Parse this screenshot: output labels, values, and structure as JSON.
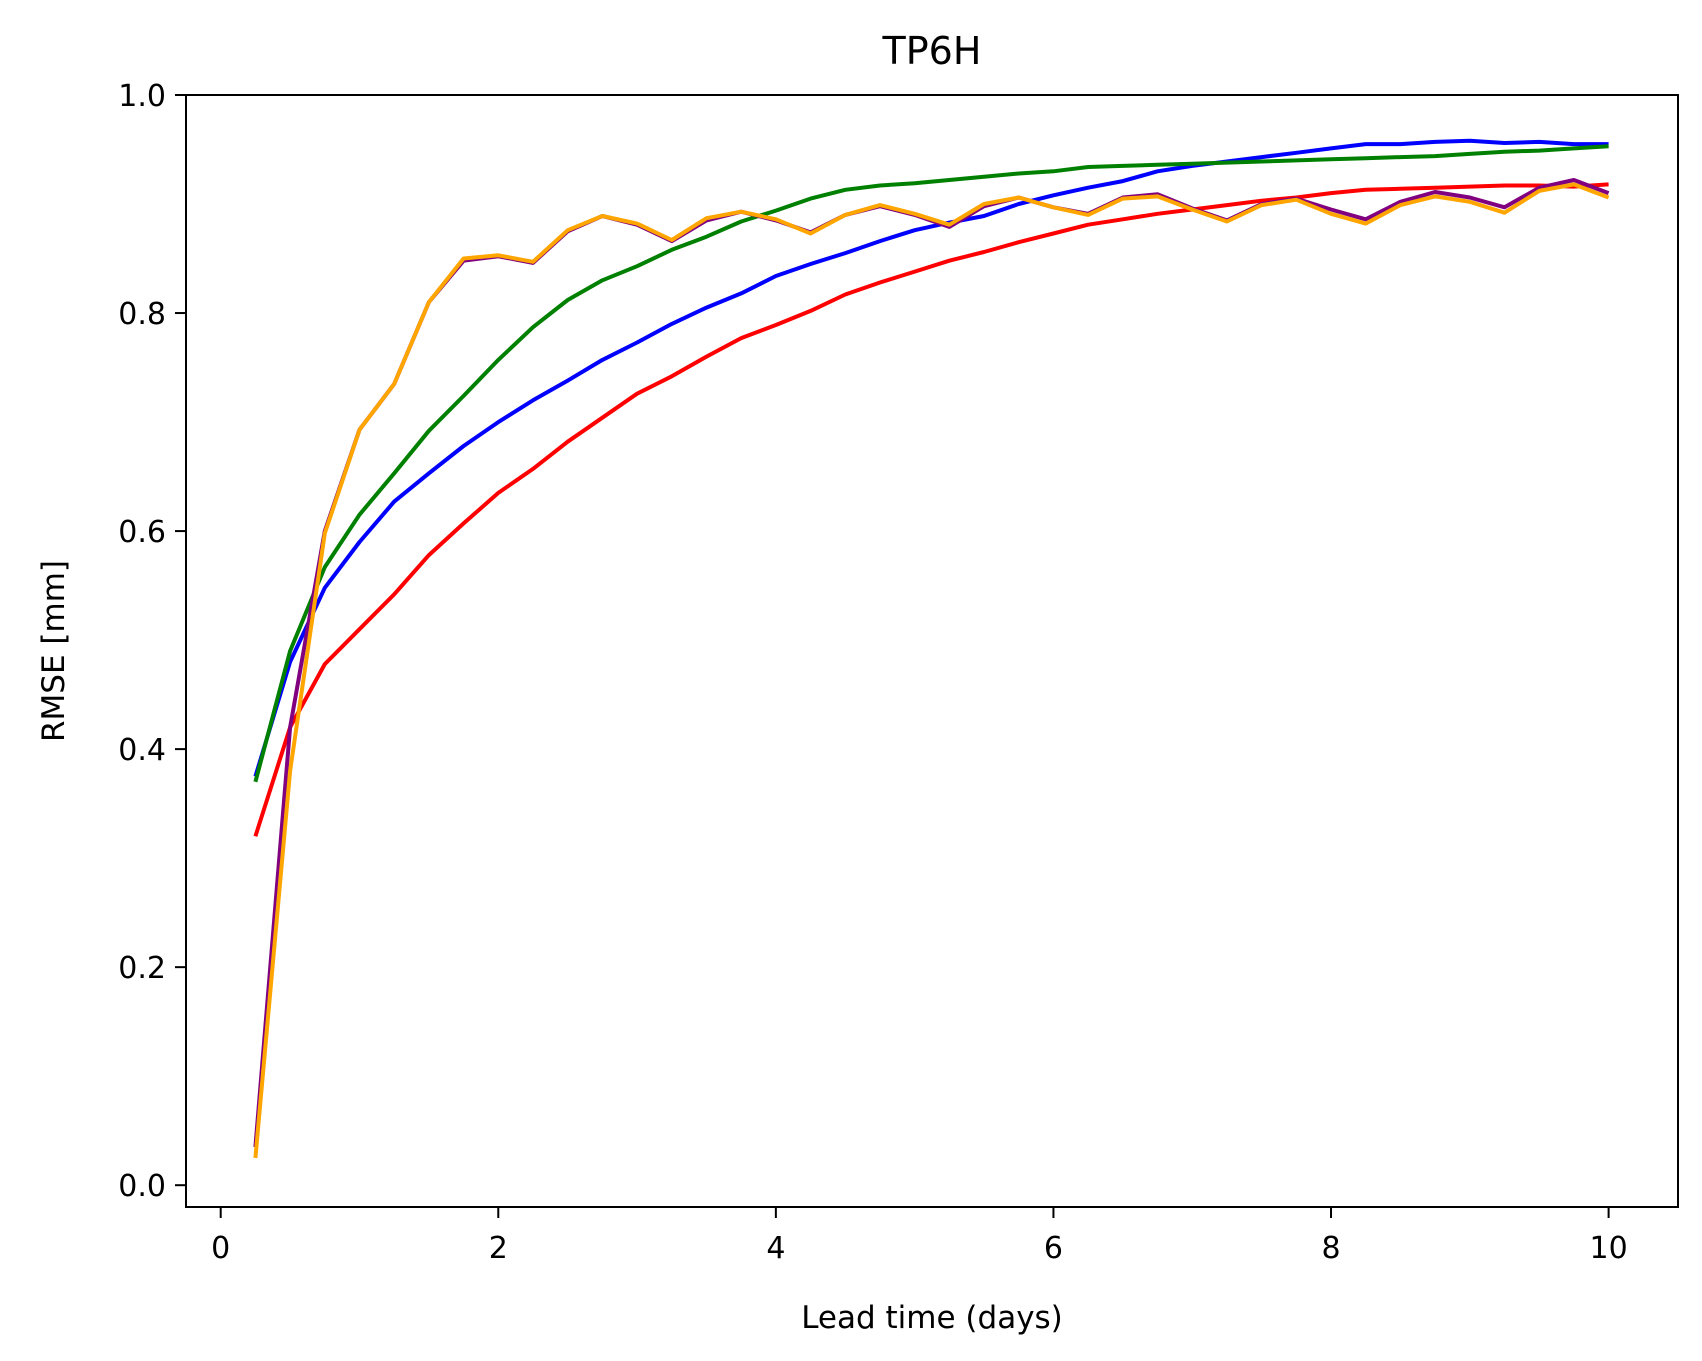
{
  "chart_data": {
    "type": "line",
    "title": "TP6H",
    "xlabel": "Lead time (days)",
    "ylabel": "RMSE [mm]",
    "xlim": [
      -0.25,
      10.5
    ],
    "ylim": [
      -0.02,
      1.0
    ],
    "xticks": [
      0,
      2,
      4,
      6,
      8,
      10
    ],
    "xtick_labels": [
      "0",
      "2",
      "4",
      "6",
      "8",
      "10"
    ],
    "yticks": [
      0.0,
      0.2,
      0.4,
      0.6,
      0.8,
      1.0
    ],
    "ytick_labels": [
      "0.0",
      "0.2",
      "0.4",
      "0.6",
      "0.8",
      "1.0"
    ],
    "grid": false,
    "x": [
      0.25,
      0.5,
      0.75,
      1.0,
      1.25,
      1.5,
      1.75,
      2.0,
      2.25,
      2.5,
      2.75,
      3.0,
      3.25,
      3.5,
      3.75,
      4.0,
      4.25,
      4.5,
      4.75,
      5.0,
      5.25,
      5.5,
      5.75,
      6.0,
      6.25,
      6.5,
      6.75,
      7.0,
      7.25,
      7.5,
      7.75,
      8.0,
      8.25,
      8.5,
      8.75,
      9.0,
      9.25,
      9.5,
      9.75,
      10.0
    ],
    "series": [
      {
        "color": "#0000ff",
        "values": [
          0.375,
          0.48,
          0.548,
          0.59,
          0.627,
          0.653,
          0.678,
          0.7,
          0.72,
          0.738,
          0.757,
          0.773,
          0.79,
          0.805,
          0.818,
          0.834,
          0.845,
          0.855,
          0.866,
          0.876,
          0.883,
          0.889,
          0.9,
          0.908,
          0.915,
          0.921,
          0.93,
          0.935,
          0.939,
          0.943,
          0.947,
          0.951,
          0.955,
          0.955,
          0.957,
          0.958,
          0.956,
          0.957,
          0.955,
          0.955
        ]
      },
      {
        "color": "#008000",
        "values": [
          0.37,
          0.49,
          0.567,
          0.615,
          0.653,
          0.692,
          0.724,
          0.757,
          0.787,
          0.812,
          0.83,
          0.843,
          0.858,
          0.87,
          0.884,
          0.894,
          0.905,
          0.913,
          0.917,
          0.919,
          0.922,
          0.925,
          0.928,
          0.93,
          0.934,
          0.935,
          0.936,
          0.937,
          0.938,
          0.939,
          0.94,
          0.941,
          0.942,
          0.943,
          0.944,
          0.946,
          0.948,
          0.949,
          0.951,
          0.953
        ]
      },
      {
        "color": "#ff0000",
        "values": [
          0.32,
          0.42,
          0.478,
          0.51,
          0.542,
          0.578,
          0.607,
          0.635,
          0.657,
          0.682,
          0.704,
          0.726,
          0.742,
          0.76,
          0.777,
          0.789,
          0.802,
          0.817,
          0.828,
          0.838,
          0.848,
          0.856,
          0.865,
          0.873,
          0.881,
          0.886,
          0.891,
          0.895,
          0.899,
          0.903,
          0.906,
          0.91,
          0.913,
          0.914,
          0.915,
          0.916,
          0.917,
          0.917,
          0.916,
          0.918
        ]
      },
      {
        "color": "#800080",
        "values": [
          0.035,
          0.42,
          0.6,
          0.693,
          0.735,
          0.81,
          0.848,
          0.852,
          0.846,
          0.875,
          0.889,
          0.881,
          0.866,
          0.885,
          0.893,
          0.885,
          0.874,
          0.89,
          0.898,
          0.89,
          0.879,
          0.898,
          0.906,
          0.897,
          0.891,
          0.906,
          0.909,
          0.896,
          0.885,
          0.9,
          0.905,
          0.895,
          0.886,
          0.902,
          0.911,
          0.906,
          0.897,
          0.915,
          0.922,
          0.91
        ]
      },
      {
        "color": "#ffa500",
        "values": [
          0.025,
          0.38,
          0.598,
          0.693,
          0.735,
          0.81,
          0.85,
          0.853,
          0.847,
          0.876,
          0.889,
          0.882,
          0.867,
          0.887,
          0.893,
          0.886,
          0.873,
          0.89,
          0.899,
          0.891,
          0.881,
          0.9,
          0.906,
          0.897,
          0.89,
          0.905,
          0.907,
          0.895,
          0.884,
          0.899,
          0.904,
          0.891,
          0.882,
          0.899,
          0.907,
          0.902,
          0.892,
          0.912,
          0.918,
          0.906
        ]
      }
    ]
  }
}
